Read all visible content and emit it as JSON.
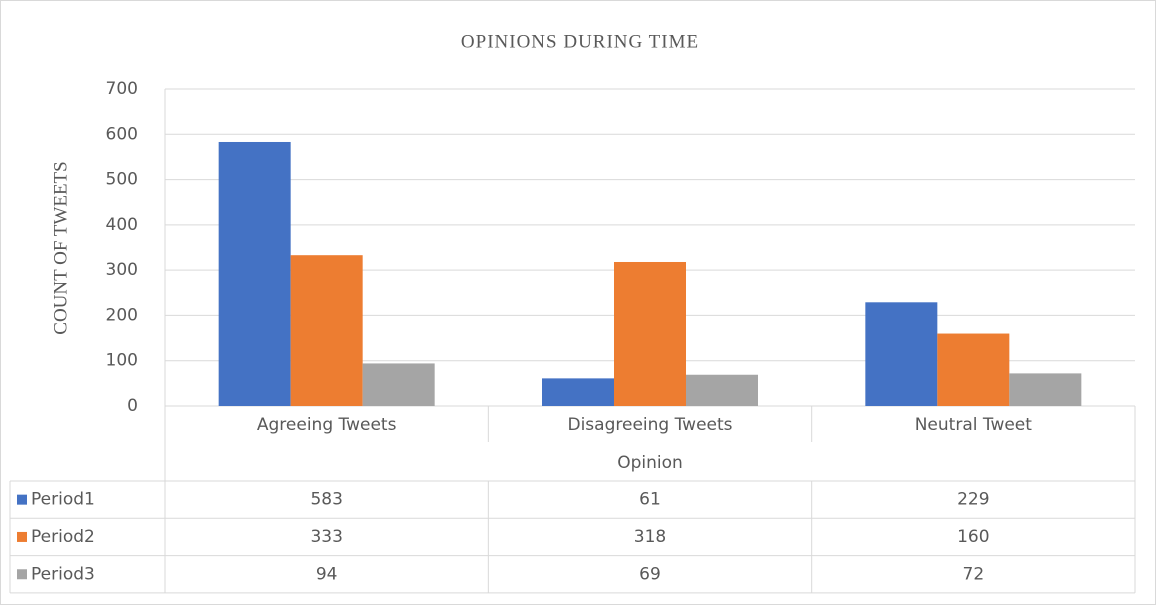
{
  "chart_data": {
    "type": "bar",
    "title": "OPINIONS DURING TIME",
    "x_label": "Opinion",
    "y_label": "COUNT OF TWEETS",
    "categories": [
      "Agreeing Tweets",
      "Disagreeing Tweets",
      "Neutral Tweet"
    ],
    "series": [
      {
        "name": "Period1",
        "color": "#4472c4",
        "values": [
          583,
          61,
          229
        ]
      },
      {
        "name": "Period2",
        "color": "#ed7d31",
        "values": [
          333,
          318,
          160
        ]
      },
      {
        "name": "Period3",
        "color": "#a5a5a5",
        "values": [
          94,
          69,
          72
        ]
      }
    ],
    "ylim": [
      0,
      700
    ],
    "yticks": [
      0,
      100,
      200,
      300,
      400,
      500,
      600,
      700
    ],
    "grid": true,
    "data_table": true
  }
}
